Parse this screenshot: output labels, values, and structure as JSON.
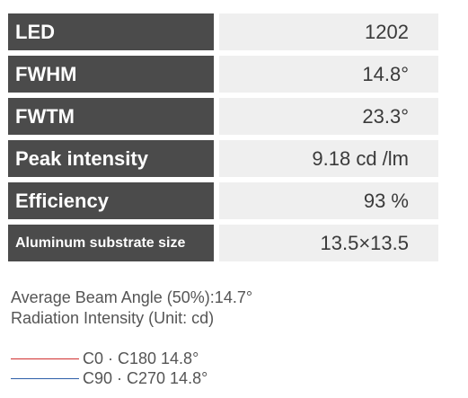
{
  "specs": [
    {
      "label": "LED",
      "value": "1202"
    },
    {
      "label": "FWHM",
      "value": "14.8°"
    },
    {
      "label": "FWTM",
      "value": "23.3°"
    },
    {
      "label": "Peak intensity",
      "value": "9.18 cd /lm"
    },
    {
      "label": "Efficiency",
      "value": "93 %"
    },
    {
      "label": "Aluminum substrate size",
      "value": "13.5×13.5"
    }
  ],
  "captions": {
    "beam_angle": "Average Beam Angle (50%):14.7°",
    "radiation": "Radiation Intensity (Unit: cd)"
  },
  "legend": [
    {
      "label": "C0 · C180 14.8°",
      "color": "#d03030"
    },
    {
      "label": "C90 · C270 14.8°",
      "color": "#2d5fa8"
    }
  ]
}
